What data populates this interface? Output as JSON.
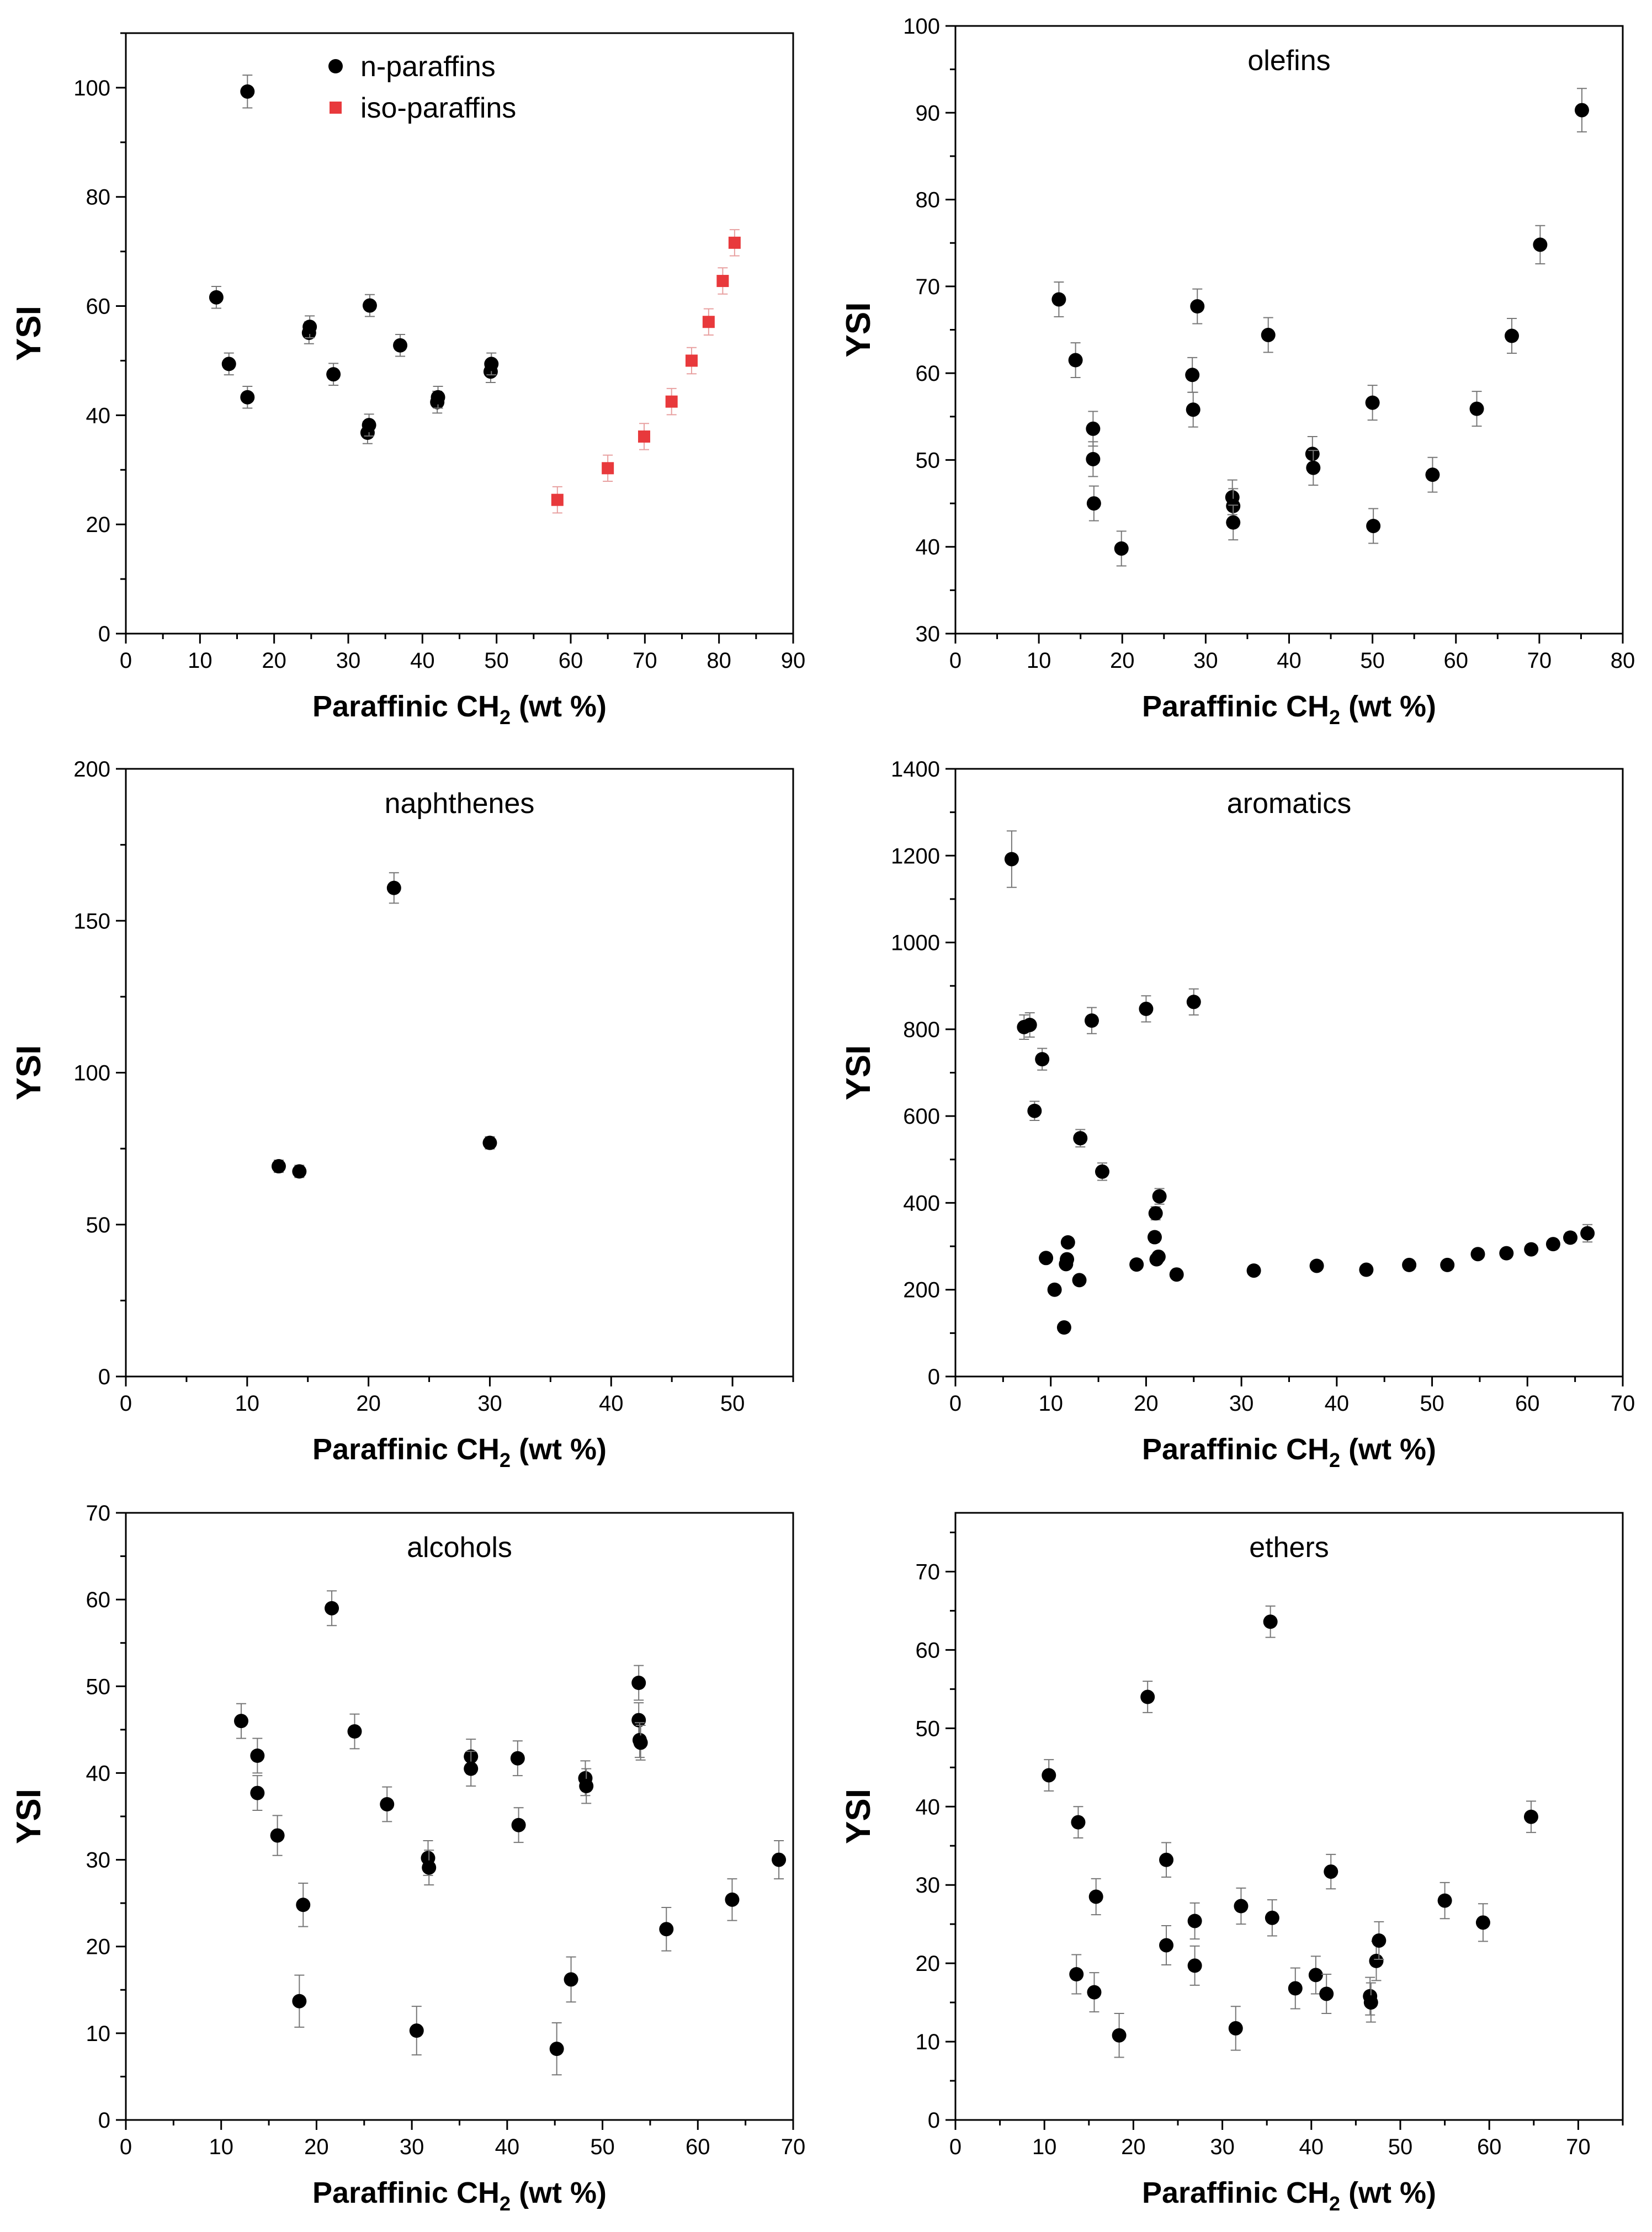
{
  "chart_data": [
    {
      "type": "scatter",
      "title": "",
      "xlabel": "Paraffinic CH",
      "xlabel_sub": "2",
      "xlabel_tail": " (wt %)",
      "ylabel": "YSI",
      "xlim": [
        0,
        90
      ],
      "ylim": [
        0,
        110
      ],
      "xticks": [
        0,
        10,
        20,
        30,
        40,
        50,
        60,
        70,
        80,
        90
      ],
      "yticks": [
        0,
        20,
        40,
        60,
        80,
        100
      ],
      "legend": "top-center",
      "series": [
        {
          "name": "n-paraffins",
          "marker": "circle",
          "color": "#000000",
          "x": [
            12.2,
            13.9,
            16.4,
            16.4,
            24.7,
            24.8,
            28,
            32.6,
            32.8,
            32.9,
            37,
            42,
            42.1,
            49.2,
            49.3
          ],
          "y": [
            61.6,
            49.4,
            99.3,
            43.3,
            55.1,
            56.2,
            47.5,
            36.8,
            38.2,
            60.1,
            52.8,
            42.4,
            43.3,
            48,
            49.4
          ],
          "err": [
            2,
            2,
            3,
            2,
            2,
            2,
            2,
            2,
            2,
            2,
            2,
            2,
            2,
            2,
            2
          ]
        },
        {
          "name": "iso-paraffins",
          "marker": "square",
          "color": "#e8393c",
          "x": [
            58.2,
            65,
            69.9,
            73.6,
            76.3,
            78.6,
            80.5,
            82.1
          ],
          "y": [
            24.5,
            30.3,
            36.1,
            42.5,
            50,
            57.1,
            64.6,
            71.6
          ],
          "err": [
            2.4,
            2.4,
            2.4,
            2.4,
            2.4,
            2.4,
            2.4,
            2.4
          ]
        }
      ]
    },
    {
      "type": "scatter",
      "title": "olefins",
      "xlabel": "Paraffinic CH",
      "xlabel_sub": "2",
      "xlabel_tail": " (wt %)",
      "ylabel": "YSI",
      "xlim": [
        0,
        80
      ],
      "ylim": [
        30,
        100
      ],
      "xticks": [
        0,
        10,
        20,
        30,
        40,
        50,
        60,
        70,
        80
      ],
      "yticks": [
        30,
        40,
        50,
        60,
        70,
        80,
        90,
        100
      ],
      "series": [
        {
          "name": "olefins",
          "marker": "circle",
          "color": "#000000",
          "x": [
            12.4,
            14.4,
            16.5,
            16.5,
            16.6,
            19.9,
            28.4,
            28.5,
            29,
            33.2,
            33.3,
            33.3,
            37.5,
            42.8,
            42.9,
            50,
            50.1,
            57.2,
            62.5,
            66.7,
            70.1,
            75.1
          ],
          "y": [
            68.5,
            61.5,
            53.6,
            50.1,
            45,
            39.8,
            59.8,
            55.8,
            67.7,
            45.7,
            44.7,
            42.8,
            64.4,
            50.7,
            49.1,
            56.6,
            42.4,
            48.3,
            55.9,
            64.3,
            74.8,
            90.3
          ],
          "err": [
            2,
            2,
            2,
            2,
            2,
            2,
            2,
            2,
            2,
            2,
            2,
            2,
            2,
            2,
            2,
            2,
            2,
            2,
            2,
            2,
            2.2,
            2.5
          ]
        }
      ]
    },
    {
      "type": "scatter",
      "title": "naphthenes",
      "xlabel": "Paraffinic CH",
      "xlabel_sub": "2",
      "xlabel_tail": " (wt %)",
      "ylabel": "YSI",
      "xlim": [
        0,
        55
      ],
      "ylim": [
        0,
        200
      ],
      "xticks": [
        0,
        10,
        20,
        30,
        40,
        50
      ],
      "yticks": [
        0,
        50,
        100,
        150,
        200
      ],
      "series": [
        {
          "name": "naphthenes",
          "marker": "circle",
          "color": "#000000",
          "x": [
            12.6,
            14.3,
            22.1,
            30
          ],
          "y": [
            69.2,
            67.5,
            160.8,
            76.9
          ],
          "err": [
            2,
            2,
            5,
            2
          ]
        }
      ]
    },
    {
      "type": "scatter",
      "title": "aromatics",
      "xlabel": "Paraffinic CH",
      "xlabel_sub": "2",
      "xlabel_tail": " (wt %)",
      "ylabel": "YSI",
      "xlim": [
        0,
        70
      ],
      "ylim": [
        0,
        1400
      ],
      "xticks": [
        0,
        10,
        20,
        30,
        40,
        50,
        60,
        70
      ],
      "yticks": [
        0,
        200,
        400,
        600,
        800,
        1000,
        1200,
        1400
      ],
      "series": [
        {
          "name": "aromatics",
          "marker": "circle",
          "color": "#000000",
          "x": [
            5.9,
            7.2,
            7.8,
            8.3,
            9.1,
            9.5,
            10.4,
            11.4,
            11.6,
            11.7,
            11.8,
            13,
            13.1,
            14.3,
            15.4,
            19,
            20,
            20.9,
            21,
            21.1,
            21.3,
            21.4,
            23.2,
            25,
            31.3,
            37.9,
            43.1,
            47.6,
            51.6,
            54.8,
            57.8,
            60.4,
            62.7,
            64.5,
            66.3
          ],
          "y": [
            1192,
            805,
            810,
            612,
            731,
            273,
            200,
            113,
            259,
            270,
            309,
            222,
            549,
            820,
            472,
            258,
            847,
            321,
            376,
            270,
            276,
            415,
            235,
            863,
            244,
            255,
            246,
            257,
            257,
            282,
            284,
            293,
            305,
            320,
            330
          ],
          "err": [
            65,
            28,
            28,
            22,
            25,
            8,
            8,
            6,
            10,
            10,
            10,
            8,
            20,
            30,
            20,
            8,
            30,
            12,
            15,
            10,
            10,
            18,
            8,
            30,
            8,
            8,
            8,
            8,
            8,
            10,
            10,
            10,
            10,
            12,
            20
          ]
        }
      ]
    },
    {
      "type": "scatter",
      "title": "alcohols",
      "xlabel": "Paraffinic CH",
      "xlabel_sub": "2",
      "xlabel_tail": " (wt %)",
      "ylabel": "YSI",
      "xlim": [
        0,
        70
      ],
      "ylim": [
        0,
        70
      ],
      "xticks": [
        0,
        10,
        20,
        30,
        40,
        50,
        60,
        70
      ],
      "yticks": [
        0,
        10,
        20,
        30,
        40,
        50,
        60,
        70
      ],
      "series": [
        {
          "name": "alcohols",
          "marker": "circle",
          "color": "#000000",
          "x": [
            12.1,
            13.8,
            13.8,
            15.9,
            18.6,
            18.2,
            21.6,
            24,
            27.4,
            30.5,
            31.7,
            31.8,
            36.2,
            36.2,
            41.1,
            41.2,
            45.2,
            46.7,
            48.2,
            48.3,
            53.8,
            53.8,
            53.9,
            54,
            56.7,
            63.6,
            68.5
          ],
          "y": [
            46,
            42,
            37.7,
            32.8,
            24.8,
            13.7,
            59,
            44.8,
            36.4,
            10.3,
            30.2,
            29.1,
            41.9,
            40.5,
            41.7,
            34,
            8.2,
            16.2,
            39.4,
            38.5,
            50.4,
            46.1,
            43.8,
            43.5,
            22,
            25.4,
            30
          ],
          "err": [
            2,
            2,
            2,
            2.3,
            2.5,
            3,
            2,
            2,
            2,
            2.8,
            2,
            2,
            2,
            2,
            2,
            2,
            3,
            2.6,
            2,
            2,
            2,
            2,
            2,
            2,
            2.5,
            2.4,
            2.2
          ]
        }
      ]
    },
    {
      "type": "scatter",
      "title": "ethers",
      "xlabel": "Paraffinic CH",
      "xlabel_sub": "2",
      "xlabel_tail": " (wt %)",
      "ylabel": "YSI",
      "xlim": [
        0,
        75
      ],
      "ylim": [
        0,
        77.5
      ],
      "xticks": [
        0,
        10,
        20,
        30,
        40,
        50,
        60,
        70
      ],
      "yticks": [
        0,
        10,
        20,
        30,
        40,
        50,
        60,
        70
      ],
      "series": [
        {
          "name": "ethers",
          "marker": "circle",
          "color": "#000000",
          "x": [
            10.5,
            13.8,
            13.6,
            15.8,
            15.6,
            18.4,
            21.6,
            23.7,
            23.7,
            26.9,
            26.9,
            31.5,
            32.1,
            35.4,
            35.6,
            38.2,
            40.5,
            41.7,
            42.2,
            46.6,
            46.7,
            47.3,
            47.6,
            55,
            59.3,
            64.7
          ],
          "y": [
            44,
            38,
            18.6,
            28.5,
            16.3,
            10.8,
            54,
            33.2,
            22.3,
            25.4,
            19.7,
            11.7,
            27.3,
            63.6,
            25.8,
            16.8,
            18.5,
            16.1,
            31.7,
            15.8,
            15,
            20.3,
            22.9,
            28,
            25.2,
            38.7
          ],
          "err": [
            2,
            2,
            2.5,
            2.3,
            2.5,
            2.8,
            2,
            2.2,
            2.5,
            2.3,
            2.5,
            2.8,
            2.3,
            2,
            2.3,
            2.6,
            2.4,
            2.5,
            2.2,
            2.4,
            2.5,
            2.5,
            2.4,
            2.3,
            2.4,
            2
          ]
        }
      ]
    }
  ]
}
